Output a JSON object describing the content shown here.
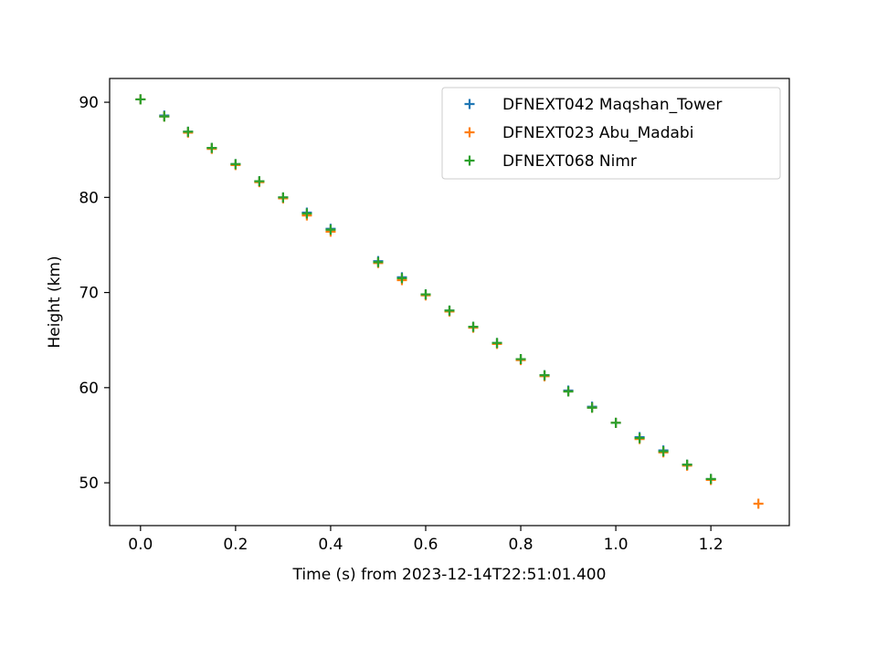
{
  "chart_data": {
    "type": "scatter",
    "title": "",
    "xlabel": "Time (s) from 2023-12-14T22:51:01.400",
    "ylabel": "Height (km)",
    "xlim": [
      -0.065,
      1.365
    ],
    "ylim": [
      45.5,
      92.5
    ],
    "xticks": [
      0.0,
      0.2,
      0.4,
      0.6,
      0.8,
      1.0,
      1.2
    ],
    "xtick_labels": [
      "0.0",
      "0.2",
      "0.4",
      "0.6",
      "0.8",
      "1.0",
      "1.2"
    ],
    "yticks": [
      50,
      60,
      70,
      80,
      90
    ],
    "ytick_labels": [
      "50",
      "60",
      "70",
      "80",
      "90"
    ],
    "grid": false,
    "legend_position": "top-right",
    "marker": "+",
    "series": [
      {
        "name": "DFNEXT042 Maqshan_Tower",
        "color": "#1f77b4",
        "x": [
          0.0,
          0.05,
          0.1,
          0.15,
          0.2,
          0.25,
          0.3,
          0.35,
          0.4,
          0.5,
          0.55,
          0.6,
          0.65,
          0.7,
          0.75,
          0.8,
          0.85,
          0.9,
          0.95,
          1.0,
          1.05,
          1.1,
          1.15,
          1.2
        ],
        "y": [
          90.3,
          88.6,
          86.9,
          85.2,
          83.5,
          81.7,
          80.0,
          78.4,
          76.7,
          73.3,
          71.6,
          69.8,
          68.1,
          66.4,
          64.7,
          63.0,
          61.3,
          59.7,
          58.0,
          56.3,
          54.8,
          53.4,
          51.9,
          50.4
        ]
      },
      {
        "name": "DFNEXT023 Abu_Madabi",
        "color": "#ff7f0e",
        "x": [
          0.0,
          0.05,
          0.1,
          0.15,
          0.2,
          0.25,
          0.3,
          0.35,
          0.4,
          0.5,
          0.55,
          0.6,
          0.65,
          0.7,
          0.75,
          0.8,
          0.85,
          0.9,
          0.95,
          1.0,
          1.05,
          1.1,
          1.15,
          1.2,
          1.3
        ],
        "y": [
          90.3,
          88.5,
          86.8,
          85.1,
          83.4,
          81.6,
          79.9,
          78.1,
          76.4,
          73.1,
          71.3,
          69.7,
          68.0,
          66.3,
          64.6,
          62.9,
          61.2,
          59.6,
          57.9,
          56.3,
          54.6,
          53.2,
          51.8,
          50.3,
          47.8
        ]
      },
      {
        "name": "DFNEXT068 Nimr",
        "color": "#2ca02c",
        "x": [
          0.0,
          0.05,
          0.1,
          0.15,
          0.2,
          0.25,
          0.3,
          0.35,
          0.4,
          0.5,
          0.55,
          0.6,
          0.65,
          0.7,
          0.75,
          0.8,
          0.85,
          0.9,
          0.95,
          1.0,
          1.05,
          1.1,
          1.15,
          1.2
        ],
        "y": [
          90.3,
          88.5,
          86.9,
          85.2,
          83.5,
          81.7,
          80.0,
          78.3,
          76.6,
          73.2,
          71.5,
          69.8,
          68.1,
          66.4,
          64.7,
          63.0,
          61.3,
          59.6,
          57.9,
          56.3,
          54.7,
          53.3,
          51.9,
          50.4
        ]
      }
    ]
  }
}
